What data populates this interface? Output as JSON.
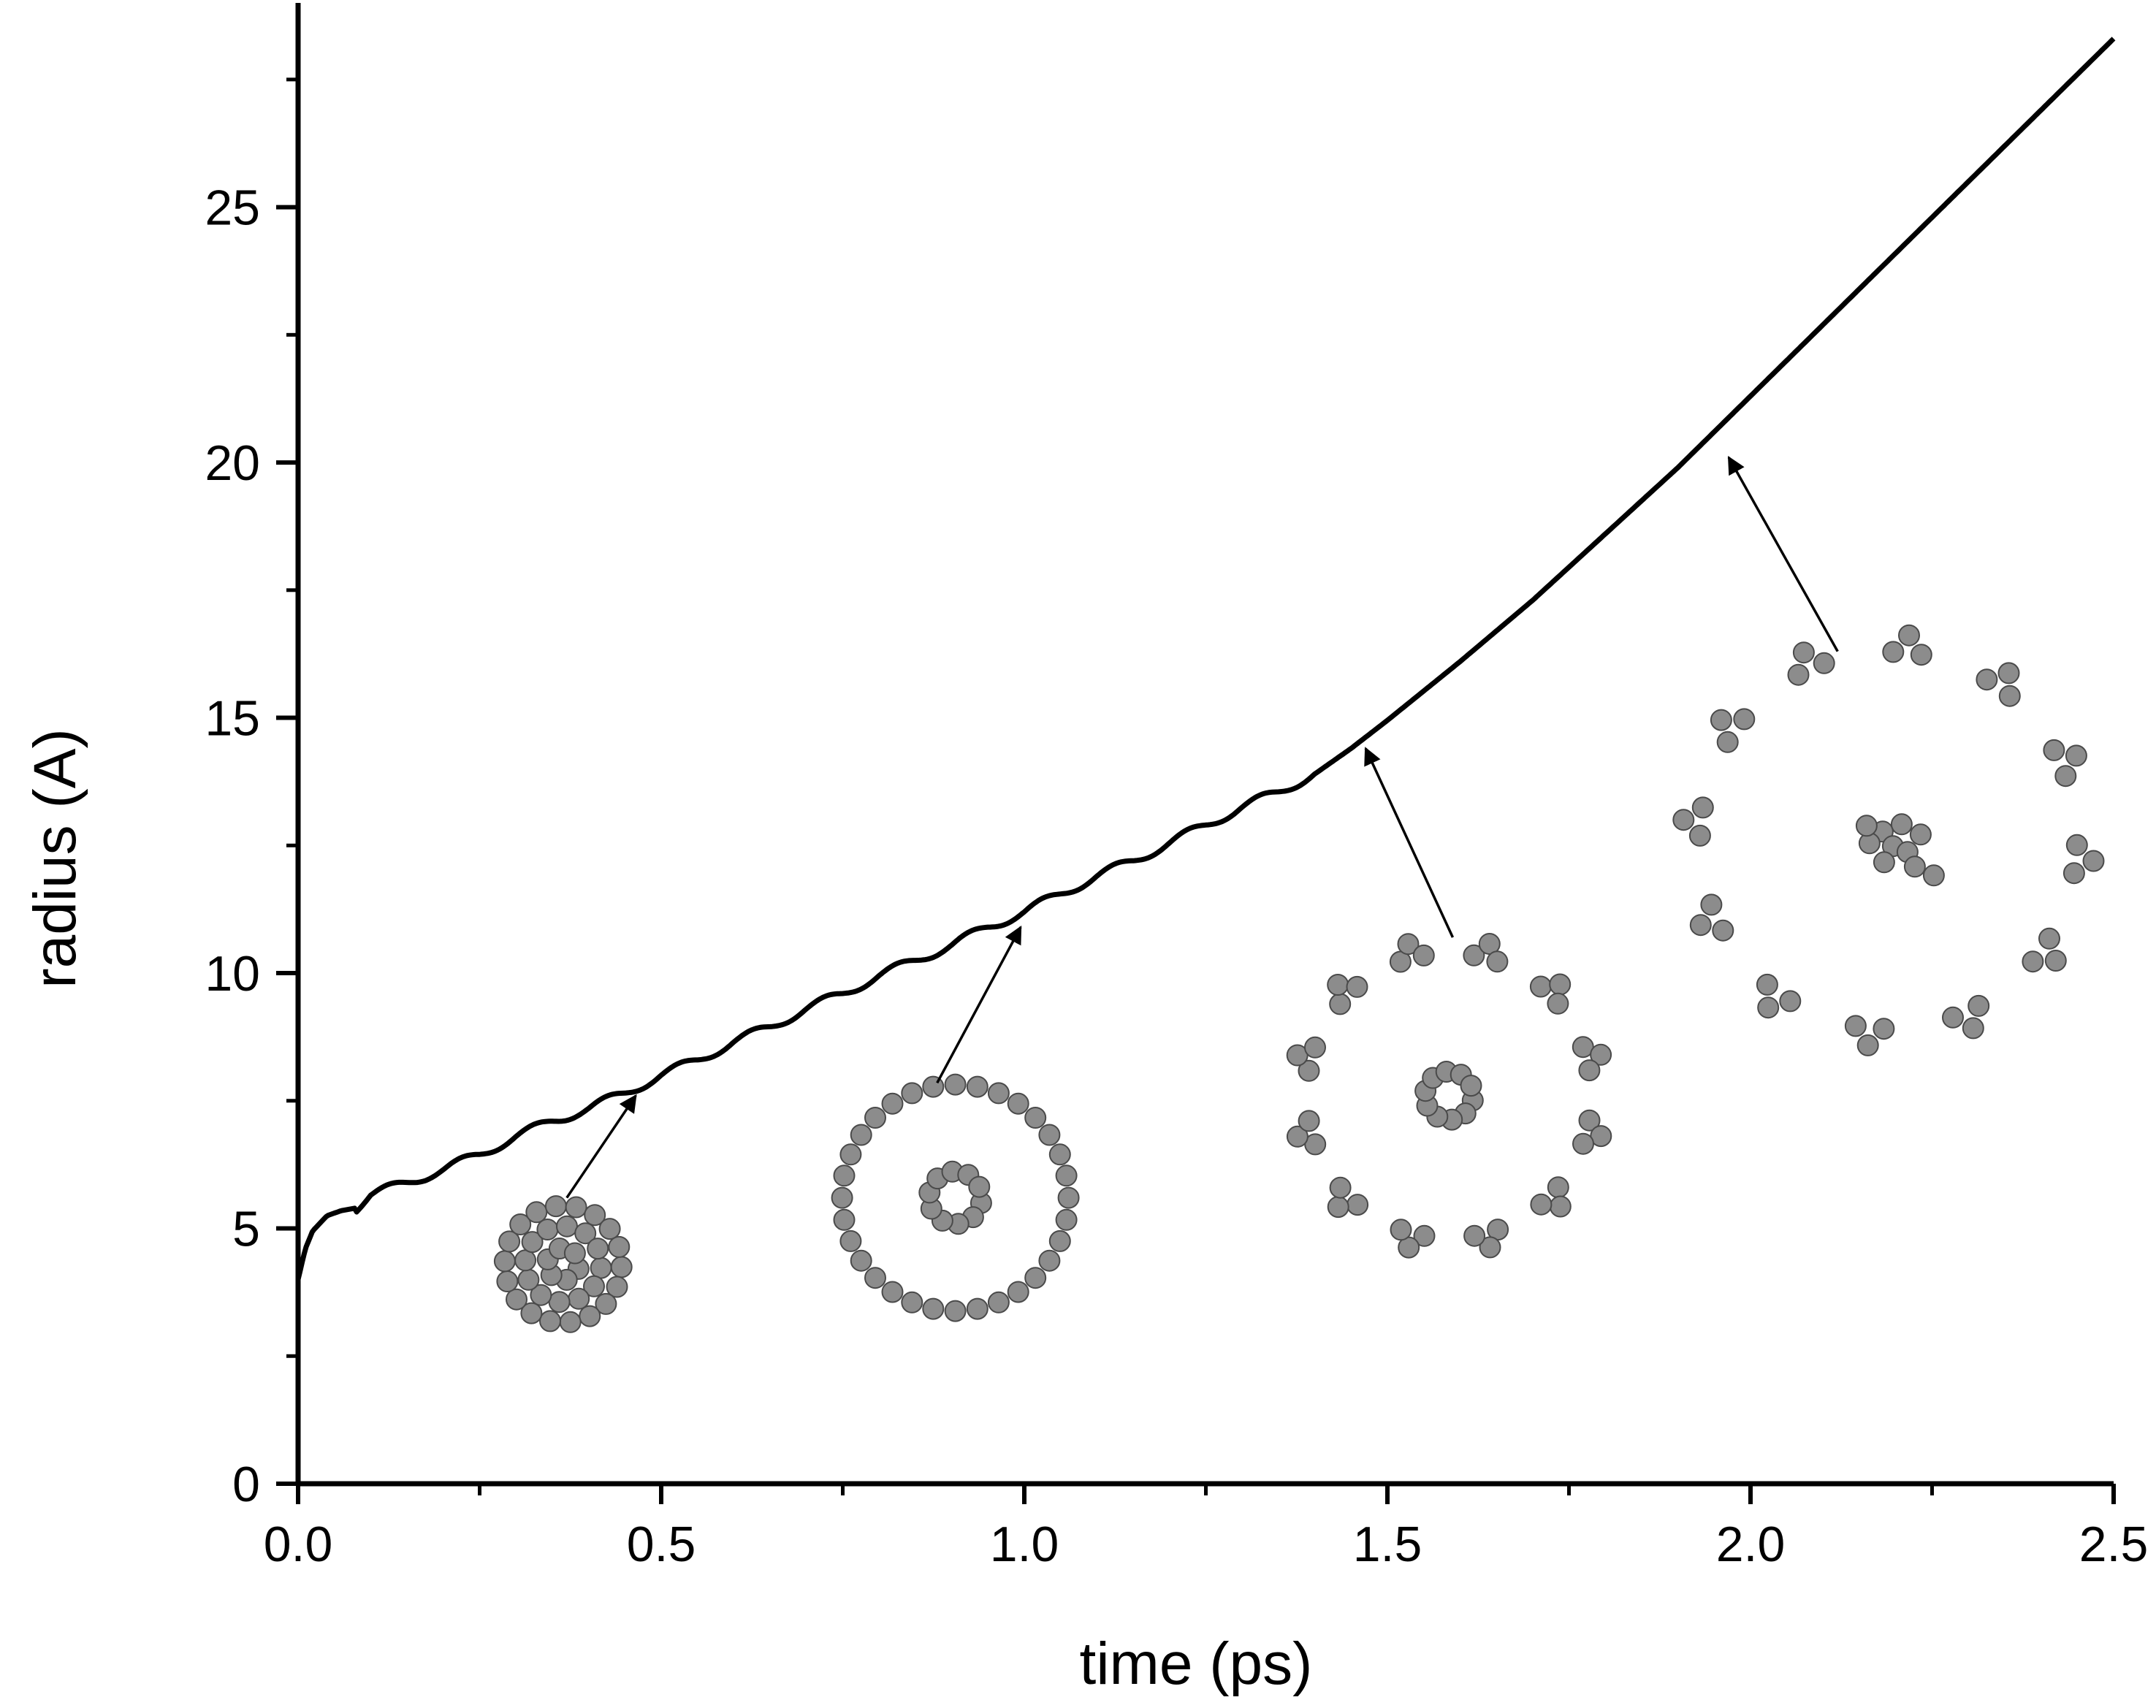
{
  "chart_data": {
    "type": "line",
    "title": "",
    "xlabel": "time (ps)",
    "ylabel": "radius (A)",
    "xlim": [
      0,
      2.5
    ],
    "ylim": [
      0,
      29
    ],
    "xticks": [
      "0.0",
      "0.5",
      "1.0",
      "1.5",
      "2.0",
      "2.5"
    ],
    "yticks": [
      "0",
      "5",
      "10",
      "15",
      "20",
      "25"
    ],
    "grid": false,
    "legend": "none",
    "series": [
      {
        "x": [
          0.0,
          0.01,
          0.02,
          0.04,
          0.06,
          0.08,
          0.1,
          0.15,
          0.2,
          0.25,
          0.3,
          0.35,
          0.4,
          0.45,
          0.5,
          0.55,
          0.6,
          0.65,
          0.7,
          0.75,
          0.8,
          0.85,
          0.9,
          0.95,
          1.0,
          1.05,
          1.1,
          1.15,
          1.2,
          1.25,
          1.3,
          1.35,
          1.4,
          1.45,
          1.5,
          1.6,
          1.7,
          1.8,
          1.9,
          2.0,
          2.1,
          2.2,
          2.3,
          2.4,
          2.5
        ],
        "y": [
          4.0,
          4.6,
          4.95,
          5.25,
          5.35,
          5.4,
          5.65,
          5.9,
          6.15,
          6.45,
          6.8,
          7.1,
          7.35,
          7.65,
          8.0,
          8.3,
          8.65,
          8.95,
          9.3,
          9.6,
          9.95,
          10.25,
          10.55,
          10.9,
          11.2,
          11.55,
          11.9,
          12.2,
          12.55,
          12.9,
          13.25,
          13.55,
          13.9,
          14.4,
          14.95,
          16.1,
          17.3,
          18.6,
          19.9,
          21.3,
          22.7,
          24.1,
          25.5,
          26.9,
          28.3
        ]
      }
    ],
    "annotations": [
      {
        "type": "arrow",
        "from": [
          0.37,
          5.6
        ],
        "to": [
          0.465,
          7.6
        ]
      },
      {
        "type": "arrow",
        "from": [
          0.88,
          7.85
        ],
        "to": [
          0.995,
          10.9
        ]
      },
      {
        "type": "arrow",
        "from": [
          1.59,
          10.7
        ],
        "to": [
          1.47,
          14.4
        ]
      },
      {
        "type": "arrow",
        "from": [
          2.12,
          16.3
        ],
        "to": [
          1.97,
          20.1
        ]
      }
    ],
    "insets": [
      {
        "name": "cluster-compact",
        "center": [
          0.365,
          4.3
        ]
      },
      {
        "name": "cluster-two-shells",
        "center": [
          0.905,
          5.6
        ]
      },
      {
        "name": "cluster-expanded",
        "center": [
          1.585,
          7.6
        ]
      },
      {
        "name": "cluster-exploded",
        "center": [
          2.19,
          12.6
        ]
      }
    ]
  }
}
